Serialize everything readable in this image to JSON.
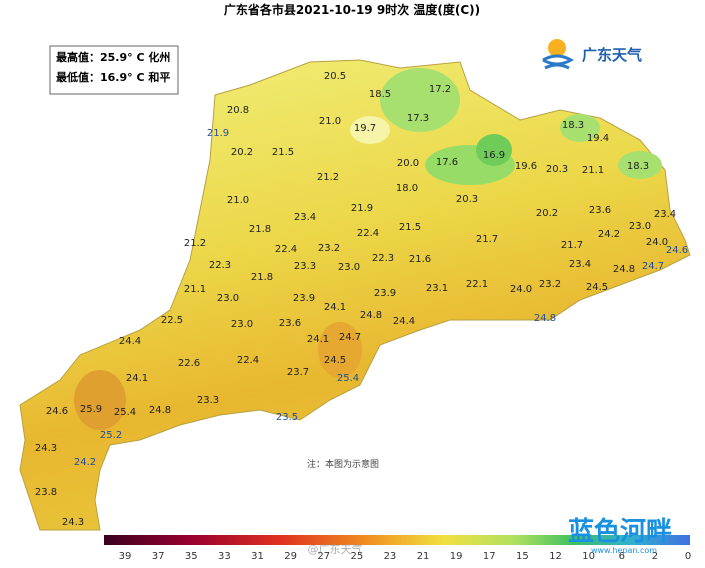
{
  "header": {
    "title": "广东省各市县2021-10-19 9时次 温度(度(C))"
  },
  "stats": {
    "max": "最高值：25.9° C 化州",
    "min": "最低值：16.9° C 和平"
  },
  "logo": {
    "name": "广东天气"
  },
  "note": "注：本图为示意图",
  "scale_ticks": [
    "39",
    "37",
    "35",
    "33",
    "31",
    "29",
    "27",
    "25",
    "23",
    "21",
    "19",
    "17",
    "15",
    "12",
    "10",
    "6",
    "2",
    "0"
  ],
  "watermark": {
    "weibo": "@广东天气",
    "brand": "蓝色河畔",
    "url": "www.hepan.com"
  },
  "labels": [
    "20.5",
    "18.5",
    "17.2",
    "20.8",
    "21.0",
    "19.7",
    "17.3",
    "18.3",
    "19.4",
    "21.9",
    "20.2",
    "21.5",
    "20.0",
    "17.6",
    "16.9",
    "19.6",
    "20.3",
    "21.1",
    "18.3",
    "21.2",
    "18.0",
    "21.0",
    "20.3",
    "23.6",
    "23.4",
    "20.2",
    "23.4",
    "21.9",
    "21.8",
    "22.4",
    "21.5",
    "23.0",
    "24.2",
    "21.7",
    "24.0",
    "24.6",
    "21.2",
    "22.4",
    "23.2",
    "21.7",
    "24.7",
    "22.3",
    "21.6",
    "22.3",
    "23.3",
    "23.0",
    "23.4",
    "24.8",
    "21.8",
    "21.1",
    "23.1",
    "22.1",
    "24.0",
    "23.2",
    "24.5",
    "23.0",
    "23.9",
    "23.9",
    "24.1",
    "24.8",
    "24.8",
    "22.5",
    "24.4",
    "23.0",
    "23.6",
    "24.1",
    "24.7",
    "24.4",
    "22.6",
    "22.4",
    "24.5",
    "23.7",
    "25.4",
    "24.1",
    "23.3",
    "24.6",
    "25.9",
    "25.4",
    "24.8",
    "23.5",
    "25.2",
    "24.3",
    "24.2",
    "23.8",
    "24.3"
  ]
}
